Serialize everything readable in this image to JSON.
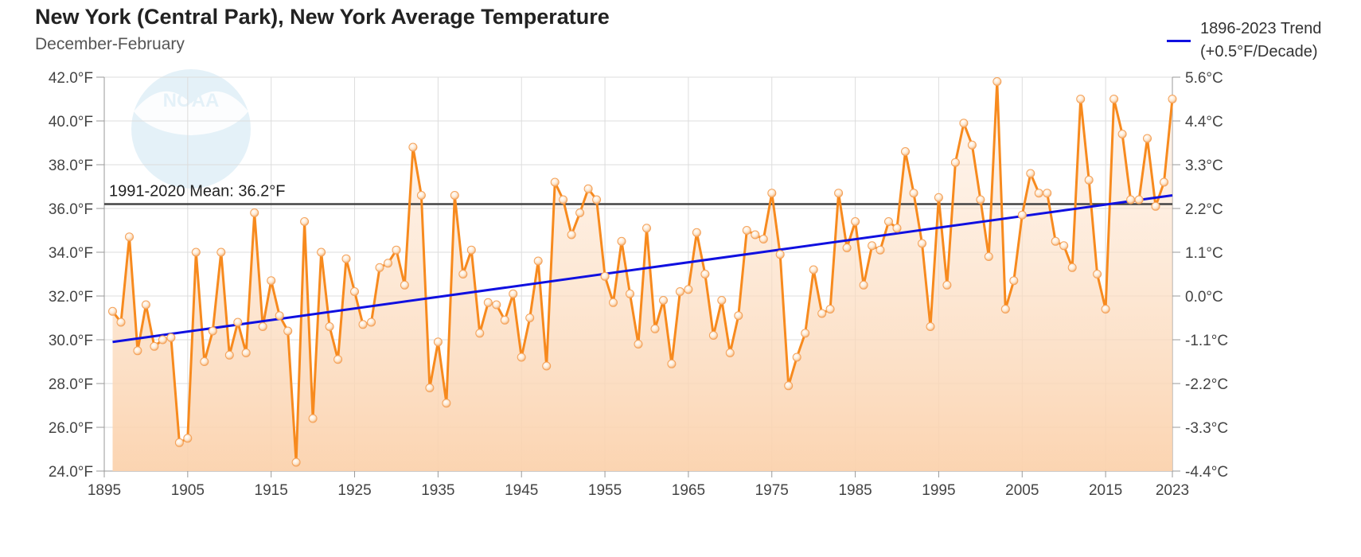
{
  "chart_data": {
    "type": "line",
    "title": "New York (Central Park), New York Average Temperature",
    "subtitle": "December-February",
    "xlim": [
      1895,
      2023
    ],
    "ylim": [
      24,
      42
    ],
    "x_ticks": [
      "1895",
      "1905",
      "1915",
      "1925",
      "1935",
      "1945",
      "1955",
      "1965",
      "1975",
      "1985",
      "1995",
      "2005",
      "2015",
      "2023"
    ],
    "y_ticks_left": [
      "24.0°F",
      "26.0°F",
      "28.0°F",
      "30.0°F",
      "32.0°F",
      "34.0°F",
      "36.0°F",
      "38.0°F",
      "40.0°F",
      "42.0°F"
    ],
    "y_ticks_right": [
      "-4.4°C",
      "-3.3°C",
      "-2.2°C",
      "-1.1°C",
      "0.0°C",
      "1.1°C",
      "2.2°C",
      "3.3°C",
      "4.4°C",
      "5.6°C"
    ],
    "grid": true,
    "series": [
      {
        "color": "#f78a1e",
        "x": [
          1896,
          1897,
          1898,
          1899,
          1900,
          1901,
          1902,
          1903,
          1904,
          1905,
          1906,
          1907,
          1908,
          1909,
          1910,
          1911,
          1912,
          1913,
          1914,
          1915,
          1916,
          1917,
          1918,
          1919,
          1920,
          1921,
          1922,
          1923,
          1924,
          1925,
          1926,
          1927,
          1928,
          1929,
          1930,
          1931,
          1932,
          1933,
          1934,
          1935,
          1936,
          1937,
          1938,
          1939,
          1940,
          1941,
          1942,
          1943,
          1944,
          1945,
          1946,
          1947,
          1948,
          1949,
          1950,
          1951,
          1952,
          1953,
          1954,
          1955,
          1956,
          1957,
          1958,
          1959,
          1960,
          1961,
          1962,
          1963,
          1964,
          1965,
          1966,
          1967,
          1968,
          1969,
          1970,
          1971,
          1972,
          1973,
          1974,
          1975,
          1976,
          1977,
          1978,
          1979,
          1980,
          1981,
          1982,
          1983,
          1984,
          1985,
          1986,
          1987,
          1988,
          1989,
          1990,
          1991,
          1992,
          1993,
          1994,
          1995,
          1996,
          1997,
          1998,
          1999,
          2000,
          2001,
          2002,
          2003,
          2004,
          2005,
          2006,
          2007,
          2008,
          2009,
          2010,
          2011,
          2012,
          2013,
          2014,
          2015,
          2016,
          2017,
          2018,
          2019,
          2020,
          2021,
          2022,
          2023
        ],
        "values": [
          31.3,
          30.8,
          34.7,
          29.5,
          31.6,
          29.7,
          30.0,
          30.1,
          25.3,
          25.5,
          34.0,
          29.0,
          30.4,
          34.0,
          29.3,
          30.8,
          29.4,
          35.8,
          30.6,
          32.7,
          31.1,
          30.4,
          24.4,
          35.4,
          26.4,
          34.0,
          30.6,
          29.1,
          33.7,
          32.2,
          30.7,
          30.8,
          33.3,
          33.5,
          34.1,
          32.5,
          38.8,
          36.6,
          27.8,
          29.9,
          27.1,
          36.6,
          33.0,
          34.1,
          30.3,
          31.7,
          31.6,
          30.9,
          32.1,
          29.2,
          31.0,
          33.6,
          28.8,
          37.2,
          36.4,
          34.8,
          35.8,
          36.9,
          36.4,
          32.9,
          31.7,
          34.5,
          32.1,
          29.8,
          35.1,
          30.5,
          31.8,
          28.9,
          32.2,
          32.3,
          34.9,
          33.0,
          30.2,
          31.8,
          29.4,
          31.1,
          35.0,
          34.8,
          34.6,
          36.7,
          33.9,
          27.9,
          29.2,
          30.3,
          33.2,
          31.2,
          31.4,
          36.7,
          34.2,
          35.4,
          32.5,
          34.3,
          34.1,
          35.4,
          35.1,
          38.6,
          36.7,
          34.4,
          30.6,
          36.5,
          32.5,
          38.1,
          39.9,
          38.9,
          36.4,
          33.8,
          41.8,
          31.4,
          32.7,
          35.7,
          37.6,
          36.7,
          36.7,
          34.5,
          34.3,
          33.3,
          41.0,
          37.3,
          33.0,
          31.4,
          41.0,
          39.4,
          36.4,
          36.4,
          39.2,
          36.1,
          37.2,
          41.0
        ]
      },
      {
        "name": "1896-2023 Trend (+0.5°F/Decade)",
        "color": "#1010e0",
        "x": [
          1896,
          2023
        ],
        "values": [
          29.9,
          36.6
        ]
      }
    ],
    "reference_line": {
      "label": "1991-2020 Mean: 36.2°F",
      "value": 36.2,
      "color": "#444444"
    },
    "legend": {
      "position": "top-right",
      "line1": "1896-2023 Trend",
      "line2": "(+0.5°F/Decade)"
    },
    "logo_text": "NOAA"
  }
}
